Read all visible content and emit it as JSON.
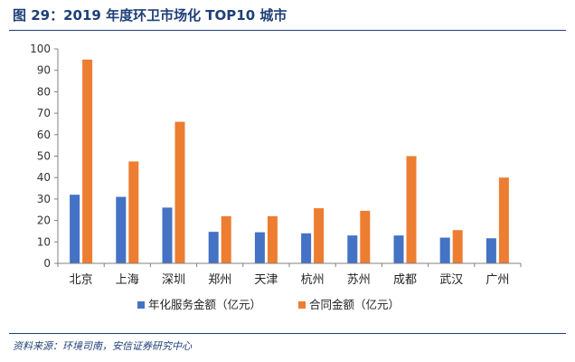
{
  "figure": {
    "title": "图 29：2019 年度环卫市场化 TOP10 城市",
    "source": "资料来源：环境司南，安信证券研究中心"
  },
  "chart_data": {
    "type": "bar",
    "categories": [
      "北京",
      "上海",
      "深圳",
      "郑州",
      "天津",
      "杭州",
      "苏州",
      "成都",
      "武汉",
      "广州"
    ],
    "series": [
      {
        "name": "年化服务金额（亿元）",
        "values": [
          32,
          31,
          26,
          14.7,
          14.5,
          14,
          13,
          13,
          12,
          11.7
        ],
        "color": "#4472c4"
      },
      {
        "name": "合同金额（亿元）",
        "values": [
          95,
          47.5,
          66,
          22,
          22,
          25.7,
          24.5,
          50,
          15.5,
          40
        ],
        "color": "#ed7d31"
      }
    ],
    "ylim": [
      0,
      100
    ],
    "yticks": [
      "0",
      "10",
      "20",
      "30",
      "40",
      "50",
      "60",
      "70",
      "80",
      "90",
      "100"
    ],
    "legend": "bottom",
    "grid": false
  }
}
